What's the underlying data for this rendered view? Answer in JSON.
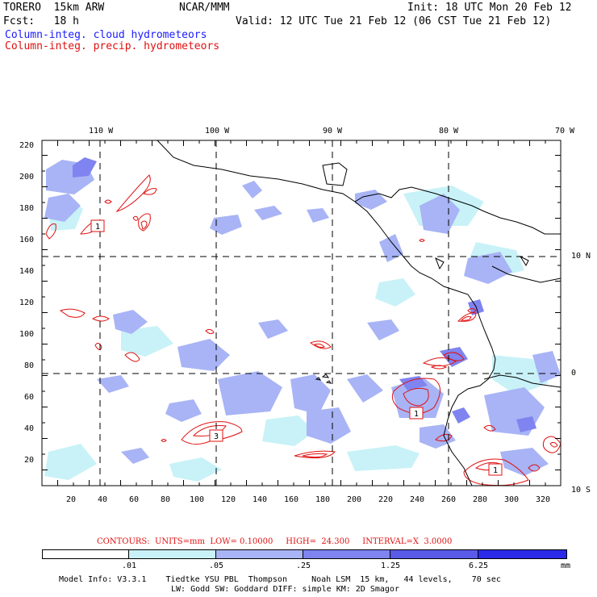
{
  "header": {
    "model": "TORERO  15km ARW",
    "center": "NCAR/MMM",
    "init": "Init: 18 UTC Mon 20 Feb 12",
    "fcst": "Fcst:   18 h",
    "valid": "Valid: 12 UTC Tue 21 Feb 12 (06 CST Tue 21 Feb 12)",
    "field1": "Column-integ. cloud hydrometeors",
    "field2": "Column-integ. precip. hydrometeors"
  },
  "map": {
    "lon_labels": [
      "110 W",
      "100 W",
      "90 W",
      "80 W",
      "70 W"
    ],
    "lat_labels_right": [
      "10 N",
      "0",
      "10 S"
    ],
    "y_ticks": [
      "220",
      "200",
      "180",
      "160",
      "140",
      "120",
      "100",
      "80",
      "60",
      "40",
      "20"
    ],
    "x_ticks": [
      "20",
      "40",
      "60",
      "80",
      "100",
      "120",
      "140",
      "160",
      "180",
      "200",
      "220",
      "240",
      "260",
      "280",
      "300",
      "320"
    ],
    "max_markers": [
      "1",
      "3",
      "1",
      "1"
    ],
    "colors": {
      "cloud_light": "#b7eef7",
      "cloud_mid": "#a8b4f5",
      "cloud_heavy": "#7f84f0",
      "precip": "#e01010",
      "coast": "#000000"
    }
  },
  "contours": {
    "text": "CONTOURS:  UNITS=mm  LOW= 0.10000     HIGH=  24.300     INTERVAL=X  3.0000"
  },
  "legend": {
    "values": [
      ".01",
      ".05",
      ".25",
      "1.25",
      "6.25"
    ],
    "unit": "mm",
    "colors": [
      "#ffffff",
      "#c8f2f7",
      "#a8b4f5",
      "#7f84f0",
      "#5a5ae8",
      "#2a2ae8"
    ]
  },
  "footer": {
    "line1": "Model Info: V3.3.1    Tiedtke YSU PBL  Thompson     Noah LSM  15 km,   44 levels,    70 sec",
    "line2": "LW: Godd SW: Goddard DIFF: simple KM: 2D Smagor"
  }
}
